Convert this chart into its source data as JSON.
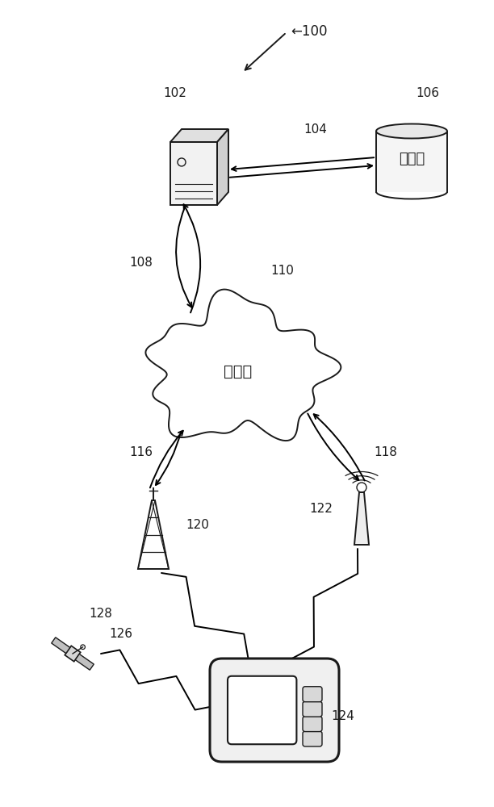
{
  "bg_color": "#ffffff",
  "label_100": "←100",
  "label_102": "102",
  "label_104": "104",
  "label_106": "106",
  "label_108": "108",
  "label_110": "110",
  "label_116": "116",
  "label_118": "118",
  "label_120": "120",
  "label_122": "122",
  "label_124": "124",
  "label_126": "126",
  "label_128": "128",
  "text_internet": "因特网",
  "text_data": "数据仓",
  "line_color": "#1a1a1a",
  "fill_light": "#eeeeee",
  "fill_white": "#ffffff"
}
